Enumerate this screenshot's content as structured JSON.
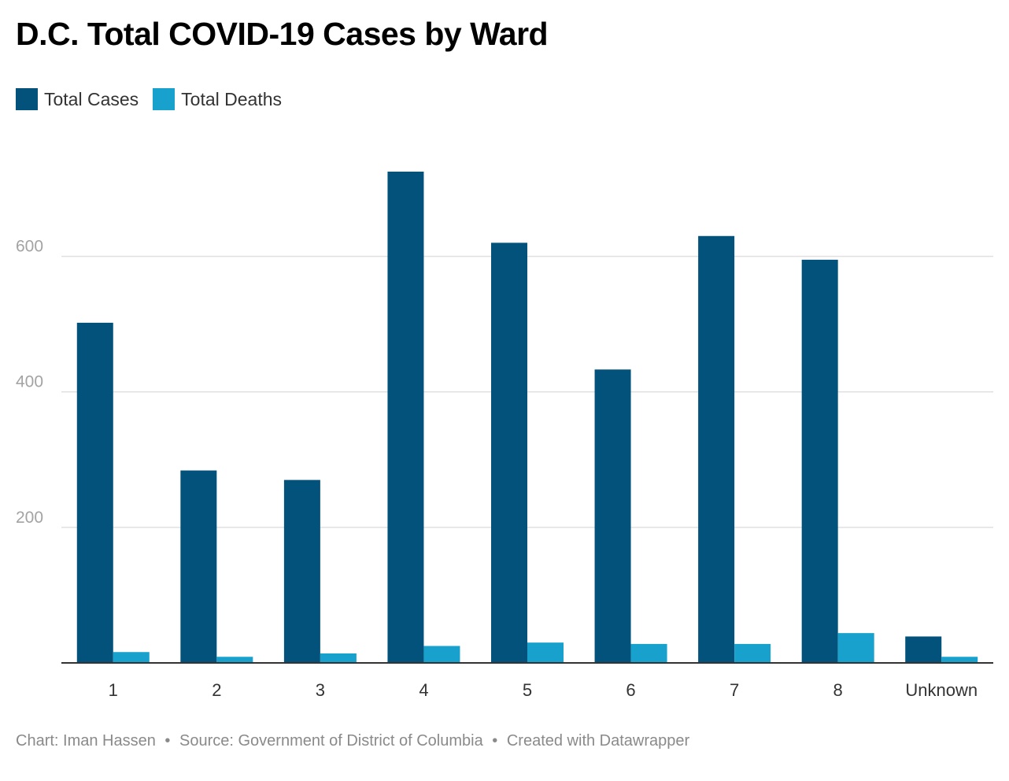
{
  "chart_data": {
    "type": "bar",
    "title": "D.C. Total COVID-19 Cases by Ward",
    "categories": [
      "1",
      "2",
      "3",
      "4",
      "5",
      "6",
      "7",
      "8",
      "Unknown"
    ],
    "series": [
      {
        "name": "Total Cases",
        "color": "#03527b",
        "values": [
          502,
          284,
          270,
          725,
          620,
          433,
          630,
          595,
          39
        ]
      },
      {
        "name": "Total Deaths",
        "color": "#18a1cd",
        "values": [
          16,
          9,
          14,
          25,
          30,
          28,
          28,
          44,
          9
        ]
      }
    ],
    "ylim": [
      0,
      725
    ],
    "yticks": [
      200,
      400,
      600
    ],
    "ytick_labels": [
      "200",
      "400",
      "600"
    ],
    "grid": true,
    "legend_position": "top-left",
    "xlabel": "",
    "ylabel": ""
  },
  "footer": {
    "chart_credit": "Chart: Iman Hassen",
    "source": "Source: Government of District of Columbia",
    "created_with": "Created with Datawrapper",
    "separator": "•"
  }
}
